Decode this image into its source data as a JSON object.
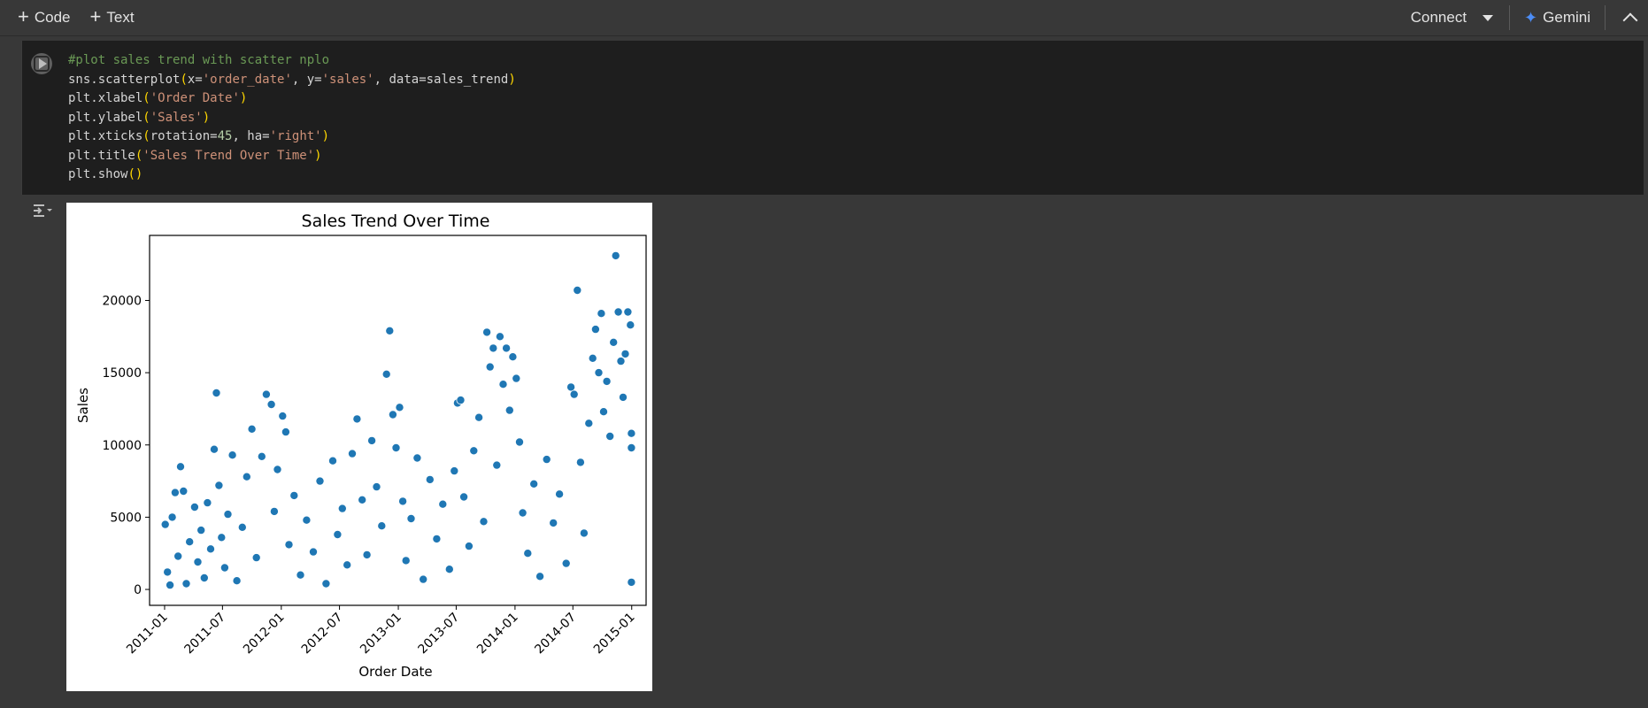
{
  "toolbar": {
    "add_code_label": "Code",
    "add_text_label": "Text",
    "connect_label": "Connect",
    "gemini_label": "Gemini"
  },
  "cell": {
    "code_lines": [
      "#plot sales trend with scatter nplo",
      "sns.scatterplot(x='order_date', y='sales', data=sales_trend)",
      "plt.xlabel('Order Date')",
      "plt.ylabel('Sales')",
      "plt.xticks(rotation=45, ha='right')",
      "plt.title('Sales Trend Over Time')",
      "plt.show()"
    ]
  },
  "colors": {
    "background": "#383838",
    "cell_bg": "#1e1e1e",
    "point_fill": "#1f77b4",
    "gemini_accent": "#4c8df6"
  },
  "chart_data": {
    "type": "scatter",
    "title": "Sales Trend Over Time",
    "xlabel": "Order Date",
    "ylabel": "Sales",
    "xlim": [
      "2010-11-15",
      "2015-02-15"
    ],
    "ylim": [
      -1100,
      24500
    ],
    "x_ticks": [
      "2011-01",
      "2011-07",
      "2012-01",
      "2012-07",
      "2013-01",
      "2013-07",
      "2014-01",
      "2014-07",
      "2015-01"
    ],
    "y_ticks": [
      0,
      5000,
      10000,
      15000,
      20000
    ],
    "grid": false,
    "legend": "none",
    "series": [
      {
        "points": [
          [
            "2011-01-03",
            4500
          ],
          [
            "2011-01-10",
            1200
          ],
          [
            "2011-01-18",
            300
          ],
          [
            "2011-01-25",
            5000
          ],
          [
            "2011-02-03",
            6700
          ],
          [
            "2011-02-12",
            2300
          ],
          [
            "2011-02-20",
            8500
          ],
          [
            "2011-03-01",
            6800
          ],
          [
            "2011-03-10",
            400
          ],
          [
            "2011-03-20",
            3300
          ],
          [
            "2011-04-05",
            5700
          ],
          [
            "2011-04-15",
            1900
          ],
          [
            "2011-04-25",
            4100
          ],
          [
            "2011-05-05",
            800
          ],
          [
            "2011-05-15",
            6000
          ],
          [
            "2011-05-25",
            2800
          ],
          [
            "2011-06-05",
            9700
          ],
          [
            "2011-06-12",
            13600
          ],
          [
            "2011-06-20",
            7200
          ],
          [
            "2011-06-28",
            3600
          ],
          [
            "2011-07-08",
            1500
          ],
          [
            "2011-07-18",
            5200
          ],
          [
            "2011-08-01",
            9300
          ],
          [
            "2011-08-15",
            600
          ],
          [
            "2011-09-01",
            4300
          ],
          [
            "2011-09-15",
            7800
          ],
          [
            "2011-10-01",
            11100
          ],
          [
            "2011-10-15",
            2200
          ],
          [
            "2011-11-01",
            9200
          ],
          [
            "2011-11-15",
            13500
          ],
          [
            "2011-12-01",
            12800
          ],
          [
            "2011-12-10",
            5400
          ],
          [
            "2011-12-20",
            8300
          ],
          [
            "2012-01-05",
            12000
          ],
          [
            "2012-01-15",
            10900
          ],
          [
            "2012-01-25",
            3100
          ],
          [
            "2012-02-10",
            6500
          ],
          [
            "2012-03-01",
            1000
          ],
          [
            "2012-03-20",
            4800
          ],
          [
            "2012-04-10",
            2600
          ],
          [
            "2012-05-01",
            7500
          ],
          [
            "2012-05-20",
            400
          ],
          [
            "2012-06-10",
            8900
          ],
          [
            "2012-06-25",
            3800
          ],
          [
            "2012-07-10",
            5600
          ],
          [
            "2012-07-25",
            1700
          ],
          [
            "2012-08-10",
            9400
          ],
          [
            "2012-08-25",
            11800
          ],
          [
            "2012-09-10",
            6200
          ],
          [
            "2012-09-25",
            2400
          ],
          [
            "2012-10-10",
            10300
          ],
          [
            "2012-10-25",
            7100
          ],
          [
            "2012-11-10",
            4400
          ],
          [
            "2012-11-25",
            14900
          ],
          [
            "2012-12-05",
            17900
          ],
          [
            "2012-12-15",
            12100
          ],
          [
            "2012-12-25",
            9800
          ],
          [
            "2013-01-05",
            12600
          ],
          [
            "2013-01-15",
            6100
          ],
          [
            "2013-01-25",
            2000
          ],
          [
            "2013-02-10",
            4900
          ],
          [
            "2013-03-01",
            9100
          ],
          [
            "2013-03-20",
            700
          ],
          [
            "2013-04-10",
            7600
          ],
          [
            "2013-05-01",
            3500
          ],
          [
            "2013-05-20",
            5900
          ],
          [
            "2013-06-10",
            1400
          ],
          [
            "2013-06-25",
            8200
          ],
          [
            "2013-07-05",
            12900
          ],
          [
            "2013-07-15",
            13100
          ],
          [
            "2013-07-25",
            6400
          ],
          [
            "2013-08-10",
            3000
          ],
          [
            "2013-08-25",
            9600
          ],
          [
            "2013-09-10",
            11900
          ],
          [
            "2013-09-25",
            4700
          ],
          [
            "2013-10-05",
            17800
          ],
          [
            "2013-10-15",
            15400
          ],
          [
            "2013-10-25",
            16700
          ],
          [
            "2013-11-05",
            8600
          ],
          [
            "2013-11-15",
            17500
          ],
          [
            "2013-11-25",
            14200
          ],
          [
            "2013-12-05",
            16700
          ],
          [
            "2013-12-15",
            12400
          ],
          [
            "2013-12-25",
            16100
          ],
          [
            "2014-01-05",
            14600
          ],
          [
            "2014-01-15",
            10200
          ],
          [
            "2014-01-25",
            5300
          ],
          [
            "2014-02-10",
            2500
          ],
          [
            "2014-03-01",
            7300
          ],
          [
            "2014-03-20",
            900
          ],
          [
            "2014-04-10",
            9000
          ],
          [
            "2014-05-01",
            4600
          ],
          [
            "2014-05-20",
            6600
          ],
          [
            "2014-06-10",
            1800
          ],
          [
            "2014-06-25",
            14000
          ],
          [
            "2014-07-05",
            13500
          ],
          [
            "2014-07-15",
            20700
          ],
          [
            "2014-07-25",
            8800
          ],
          [
            "2014-08-05",
            3900
          ],
          [
            "2014-08-20",
            11500
          ],
          [
            "2014-09-01",
            16000
          ],
          [
            "2014-09-10",
            18000
          ],
          [
            "2014-09-20",
            15000
          ],
          [
            "2014-09-28",
            19100
          ],
          [
            "2014-10-05",
            12300
          ],
          [
            "2014-10-15",
            14400
          ],
          [
            "2014-10-25",
            10600
          ],
          [
            "2014-11-05",
            17100
          ],
          [
            "2014-11-12",
            23100
          ],
          [
            "2014-11-20",
            19200
          ],
          [
            "2014-11-28",
            15800
          ],
          [
            "2014-12-05",
            13300
          ],
          [
            "2014-12-12",
            16300
          ],
          [
            "2014-12-20",
            19200
          ],
          [
            "2014-12-28",
            18300
          ],
          [
            "2014-12-31",
            10800
          ],
          [
            "2014-12-31",
            9800
          ],
          [
            "2014-12-31",
            500
          ]
        ]
      }
    ]
  }
}
